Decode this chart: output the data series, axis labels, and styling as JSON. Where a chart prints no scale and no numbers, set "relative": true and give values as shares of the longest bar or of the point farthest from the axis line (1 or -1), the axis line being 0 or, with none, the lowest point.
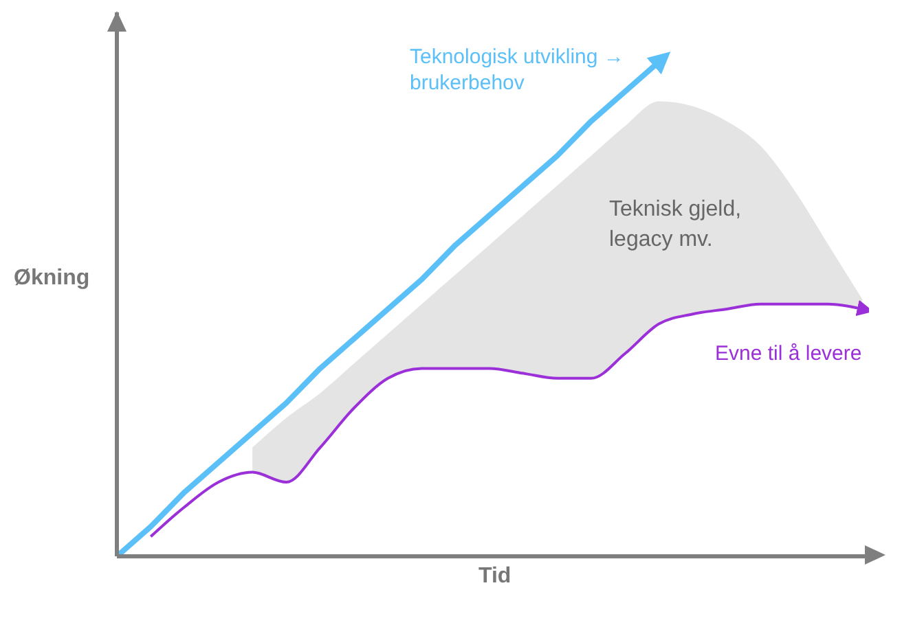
{
  "chart_data": {
    "type": "line",
    "relative": true,
    "xlabel": "Tid",
    "ylabel": "Økning",
    "marker": "none",
    "categories": [
      null,
      null,
      null,
      null,
      null,
      null,
      null,
      null,
      null,
      null,
      null,
      null,
      null,
      null,
      null,
      null,
      null,
      null,
      null,
      null,
      null,
      null,
      null
    ],
    "series": [
      {
        "name": "Teknologisk utvikling → brukerbehov",
        "color": "#5bc0f8",
        "values": [
          0,
          0.06,
          0.13,
          0.19,
          0.25,
          0.31,
          0.38,
          0.44,
          0.5,
          0.56,
          0.63,
          0.69,
          0.75,
          0.81,
          0.88,
          0.94,
          1,
          null,
          null,
          null,
          null,
          null,
          null
        ]
      },
      {
        "name": "Evne til å levere",
        "color": "#9b30d9",
        "values": [
          null,
          0.04,
          0.1,
          0.15,
          0.17,
          0.15,
          0.22,
          0.3,
          0.36,
          0.38,
          0.38,
          0.38,
          0.37,
          0.36,
          0.36,
          0.41,
          0.47,
          0.49,
          0.5,
          0.51,
          0.51,
          0.51,
          0.5
        ],
        "lower": [
          null,
          null,
          null,
          null,
          0.17,
          0.15,
          0.22,
          0.3,
          0.36,
          0.38,
          0.38,
          0.38,
          0.37,
          0.36,
          0.36,
          0.41,
          0.47,
          0.49,
          0.5,
          0.51,
          0.51,
          0.51,
          0.5
        ],
        "upper": [
          null,
          null,
          null,
          null,
          0.22,
          0.28,
          0.33,
          0.39,
          0.45,
          0.51,
          0.57,
          0.63,
          0.69,
          0.75,
          0.81,
          0.87,
          0.92,
          0.91,
          0.88,
          0.83,
          0.74,
          0.63,
          0.52
        ]
      }
    ],
    "annotations": [
      "Teknisk gjeld, legacy mv."
    ]
  }
}
